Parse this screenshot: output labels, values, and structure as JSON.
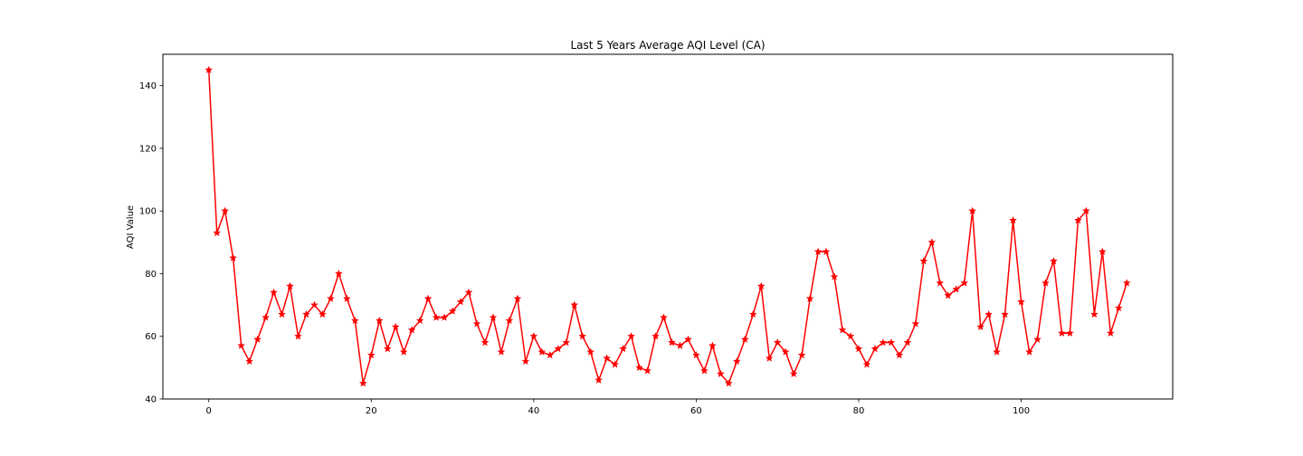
{
  "chart_data": {
    "type": "line",
    "title": "Last 5 Years Average AQI Level (CA)",
    "xlabel": "",
    "ylabel": "AQI Value",
    "xlim": [
      -5.65,
      118.65
    ],
    "ylim": [
      40,
      150
    ],
    "xticks": [
      0,
      20,
      40,
      60,
      80,
      100
    ],
    "yticks": [
      40,
      60,
      80,
      100,
      120,
      140
    ],
    "grid": false,
    "color": "#ff0000",
    "marker": "star",
    "series": [
      {
        "values": [
          145,
          93,
          100,
          85,
          57,
          52,
          59,
          66,
          74,
          67,
          76,
          60,
          67,
          70,
          67,
          72,
          80,
          72,
          65,
          45,
          54,
          65,
          56,
          63,
          55,
          62,
          65,
          72,
          66,
          66,
          68,
          71,
          74,
          64,
          58,
          66,
          55,
          65,
          72,
          52,
          60,
          55,
          54,
          56,
          58,
          70,
          60,
          55,
          46,
          53,
          51,
          56,
          60,
          50,
          49,
          60,
          66,
          58,
          57,
          59,
          54,
          49,
          57,
          48,
          45,
          52,
          59,
          67,
          76,
          53,
          58,
          55,
          48,
          54,
          72,
          87,
          87,
          79,
          62,
          60,
          56,
          51,
          56,
          58,
          58,
          54,
          58,
          64,
          84,
          90,
          77,
          73,
          75,
          77,
          100,
          63,
          67,
          55,
          67,
          97,
          71,
          55,
          59,
          77,
          84,
          61,
          61,
          97,
          100,
          67,
          87,
          61,
          69,
          77
        ]
      }
    ]
  }
}
